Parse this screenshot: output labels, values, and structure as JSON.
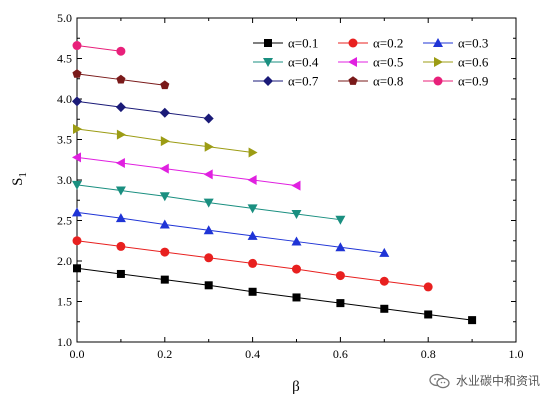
{
  "chart_data": {
    "type": "line",
    "xlabel": "β",
    "ylabel": "S",
    "ylabel_subscript": "1",
    "xlim": [
      0.0,
      1.0
    ],
    "ylim": [
      1.0,
      5.0
    ],
    "x_ticks": [
      0.0,
      0.2,
      0.4,
      0.6,
      0.8,
      1.0
    ],
    "y_ticks": [
      1.0,
      1.5,
      2.0,
      2.5,
      3.0,
      3.5,
      4.0,
      4.5,
      5.0
    ],
    "x_tick_labels": [
      "0.0",
      "0.2",
      "0.4",
      "0.6",
      "0.8",
      "1.0"
    ],
    "y_tick_labels": [
      "1.0",
      "1.5",
      "2.0",
      "2.5",
      "3.0",
      "3.5",
      "4.0",
      "4.5",
      "5.0"
    ],
    "grid": false,
    "legend_position": "top-right",
    "series": [
      {
        "name": "α=0.1",
        "color": "#000000",
        "marker": "square",
        "x": [
          0.0,
          0.1,
          0.2,
          0.3,
          0.4,
          0.5,
          0.6,
          0.7,
          0.8,
          0.9
        ],
        "y": [
          1.91,
          1.84,
          1.77,
          1.7,
          1.62,
          1.55,
          1.48,
          1.41,
          1.34,
          1.27
        ]
      },
      {
        "name": "α=0.2",
        "color": "#e8201f",
        "marker": "circle",
        "x": [
          0.0,
          0.1,
          0.2,
          0.3,
          0.4,
          0.5,
          0.6,
          0.7,
          0.8
        ],
        "y": [
          2.25,
          2.18,
          2.11,
          2.04,
          1.97,
          1.9,
          1.82,
          1.75,
          1.68
        ]
      },
      {
        "name": "α=0.3",
        "color": "#1f34d6",
        "marker": "triangle-up",
        "x": [
          0.0,
          0.1,
          0.2,
          0.3,
          0.4,
          0.5,
          0.6,
          0.7
        ],
        "y": [
          2.6,
          2.53,
          2.45,
          2.38,
          2.31,
          2.24,
          2.17,
          2.1
        ]
      },
      {
        "name": "α=0.4",
        "color": "#1a8f80",
        "marker": "triangle-down",
        "x": [
          0.0,
          0.1,
          0.2,
          0.3,
          0.4,
          0.5,
          0.6
        ],
        "y": [
          2.94,
          2.87,
          2.8,
          2.72,
          2.65,
          2.58,
          2.51
        ]
      },
      {
        "name": "α=0.5",
        "color": "#e020e0",
        "marker": "triangle-left",
        "x": [
          0.0,
          0.1,
          0.2,
          0.3,
          0.4,
          0.5
        ],
        "y": [
          3.28,
          3.21,
          3.14,
          3.07,
          3.0,
          2.93
        ]
      },
      {
        "name": "α=0.6",
        "color": "#9c9c14",
        "marker": "triangle-right",
        "x": [
          0.0,
          0.1,
          0.2,
          0.3,
          0.4
        ],
        "y": [
          3.63,
          3.56,
          3.48,
          3.41,
          3.34
        ]
      },
      {
        "name": "α=0.7",
        "color": "#1a1a78",
        "marker": "diamond",
        "x": [
          0.0,
          0.1,
          0.2,
          0.3
        ],
        "y": [
          3.97,
          3.9,
          3.83,
          3.76
        ]
      },
      {
        "name": "α=0.8",
        "color": "#7a1a1a",
        "marker": "pentagon",
        "x": [
          0.0,
          0.1,
          0.2
        ],
        "y": [
          4.31,
          4.24,
          4.17
        ]
      },
      {
        "name": "α=0.9",
        "color": "#e8207a",
        "marker": "circle",
        "x": [
          0.0,
          0.1
        ],
        "y": [
          4.66,
          4.59
        ]
      }
    ]
  },
  "watermark": {
    "text": "水业碳中和资讯",
    "icon": "wechat-icon"
  }
}
